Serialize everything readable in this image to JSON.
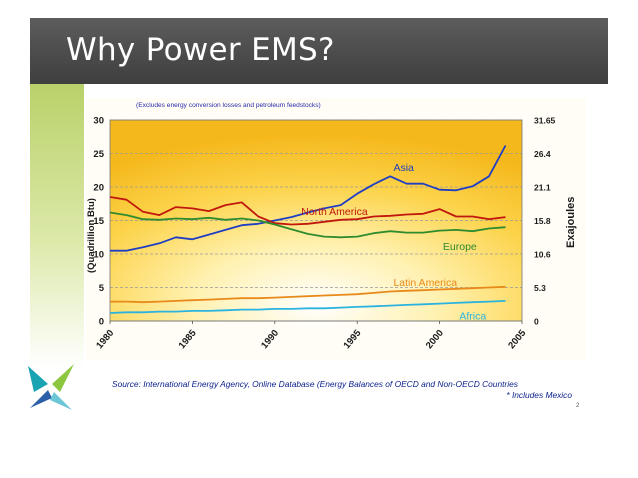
{
  "slide": {
    "title": "Why Power EMS?",
    "source_text": "Source: International Energy Agency, Online Database (Energy Balances of OECD and Non-OECD Countries",
    "source_note": "* Includes Mexico",
    "page_number": "2",
    "colors": {
      "title_bar": "#4a4a4a",
      "side_bar": "#b9d16a",
      "logo_teal": "#1aa3b3",
      "logo_blue": "#2b5fa8",
      "logo_green": "#8dc63f"
    }
  },
  "chart_data": {
    "type": "line",
    "subtitle": "(Excludes energy conversion losses and petroleum feedstocks)",
    "ylabel": "(Quadrillion Btu)",
    "ylabel_right": "Exajoules",
    "x_ticks": [
      "1980",
      "1985",
      "1990",
      "1995",
      "2000",
      "2005"
    ],
    "y_ticks": [
      "0",
      "5",
      "10",
      "15",
      "20",
      "25",
      "30"
    ],
    "y_right_ticks": [
      "0",
      "5.3",
      "10.6",
      "15.8",
      "21.1",
      "26.4",
      "31.65"
    ],
    "xlim": [
      1980,
      2005
    ],
    "ylim": [
      0,
      30
    ],
    "grid": true,
    "series": [
      {
        "name": "Asia",
        "color": "#1f3ec4",
        "x": [
          1980,
          1981,
          1982,
          1983,
          1984,
          1985,
          1986,
          1987,
          1988,
          1989,
          1990,
          1991,
          1992,
          1993,
          1994,
          1995,
          1996,
          1997,
          1998,
          1999,
          2000,
          2001,
          2002,
          2003,
          2004
        ],
        "y": [
          10.5,
          10.5,
          11.0,
          11.6,
          12.5,
          12.2,
          12.9,
          13.6,
          14.3,
          14.5,
          15.0,
          15.5,
          16.2,
          16.8,
          17.3,
          19.0,
          20.4,
          21.6,
          20.5,
          20.5,
          19.6,
          19.5,
          20.1,
          21.6,
          26.2
        ]
      },
      {
        "name": "North America",
        "color": "#c0180c",
        "x": [
          1980,
          1981,
          1982,
          1983,
          1984,
          1985,
          1986,
          1987,
          1988,
          1989,
          1990,
          1991,
          1992,
          1993,
          1994,
          1995,
          1996,
          1997,
          1998,
          1999,
          2000,
          2001,
          2002,
          2003,
          2004
        ],
        "y": [
          18.5,
          18.1,
          16.3,
          15.8,
          17.0,
          16.8,
          16.4,
          17.3,
          17.7,
          15.6,
          14.6,
          14.4,
          14.5,
          14.8,
          15.1,
          15.2,
          15.6,
          15.7,
          15.9,
          16.0,
          16.7,
          15.6,
          15.6,
          15.2,
          15.5
        ]
      },
      {
        "name": "Europe",
        "color": "#2e8b2e",
        "x": [
          1980,
          1981,
          1982,
          1983,
          1984,
          1985,
          1986,
          1987,
          1988,
          1989,
          1990,
          1991,
          1992,
          1993,
          1994,
          1995,
          1996,
          1997,
          1998,
          1999,
          2000,
          2001,
          2002,
          2003,
          2004
        ],
        "y": [
          16.2,
          15.8,
          15.2,
          15.1,
          15.3,
          15.2,
          15.4,
          15.1,
          15.3,
          15.0,
          14.4,
          13.7,
          13.0,
          12.6,
          12.5,
          12.6,
          13.1,
          13.4,
          13.2,
          13.2,
          13.5,
          13.6,
          13.4,
          13.8,
          14.0
        ]
      },
      {
        "name": "Latin America",
        "color": "#e88a1a",
        "x": [
          1980,
          1981,
          1982,
          1983,
          1984,
          1985,
          1986,
          1987,
          1988,
          1989,
          1990,
          1991,
          1992,
          1993,
          1994,
          1995,
          1996,
          1997,
          1998,
          1999,
          2000,
          2001,
          2002,
          2003,
          2004
        ],
        "y": [
          2.9,
          2.9,
          2.8,
          2.9,
          3.0,
          3.1,
          3.2,
          3.3,
          3.4,
          3.4,
          3.5,
          3.6,
          3.7,
          3.8,
          3.9,
          4.0,
          4.2,
          4.4,
          4.5,
          4.6,
          4.7,
          4.8,
          4.9,
          5.0,
          5.1
        ]
      },
      {
        "name": "Africa",
        "color": "#2bb3e0",
        "x": [
          1980,
          1981,
          1982,
          1983,
          1984,
          1985,
          1986,
          1987,
          1988,
          1989,
          1990,
          1991,
          1992,
          1993,
          1994,
          1995,
          1996,
          1997,
          1998,
          1999,
          2000,
          2001,
          2002,
          2003,
          2004
        ],
        "y": [
          1.2,
          1.3,
          1.3,
          1.4,
          1.4,
          1.5,
          1.5,
          1.6,
          1.7,
          1.7,
          1.8,
          1.8,
          1.9,
          1.9,
          2.0,
          2.1,
          2.2,
          2.3,
          2.4,
          2.5,
          2.6,
          2.7,
          2.8,
          2.9,
          3.0
        ]
      }
    ]
  }
}
